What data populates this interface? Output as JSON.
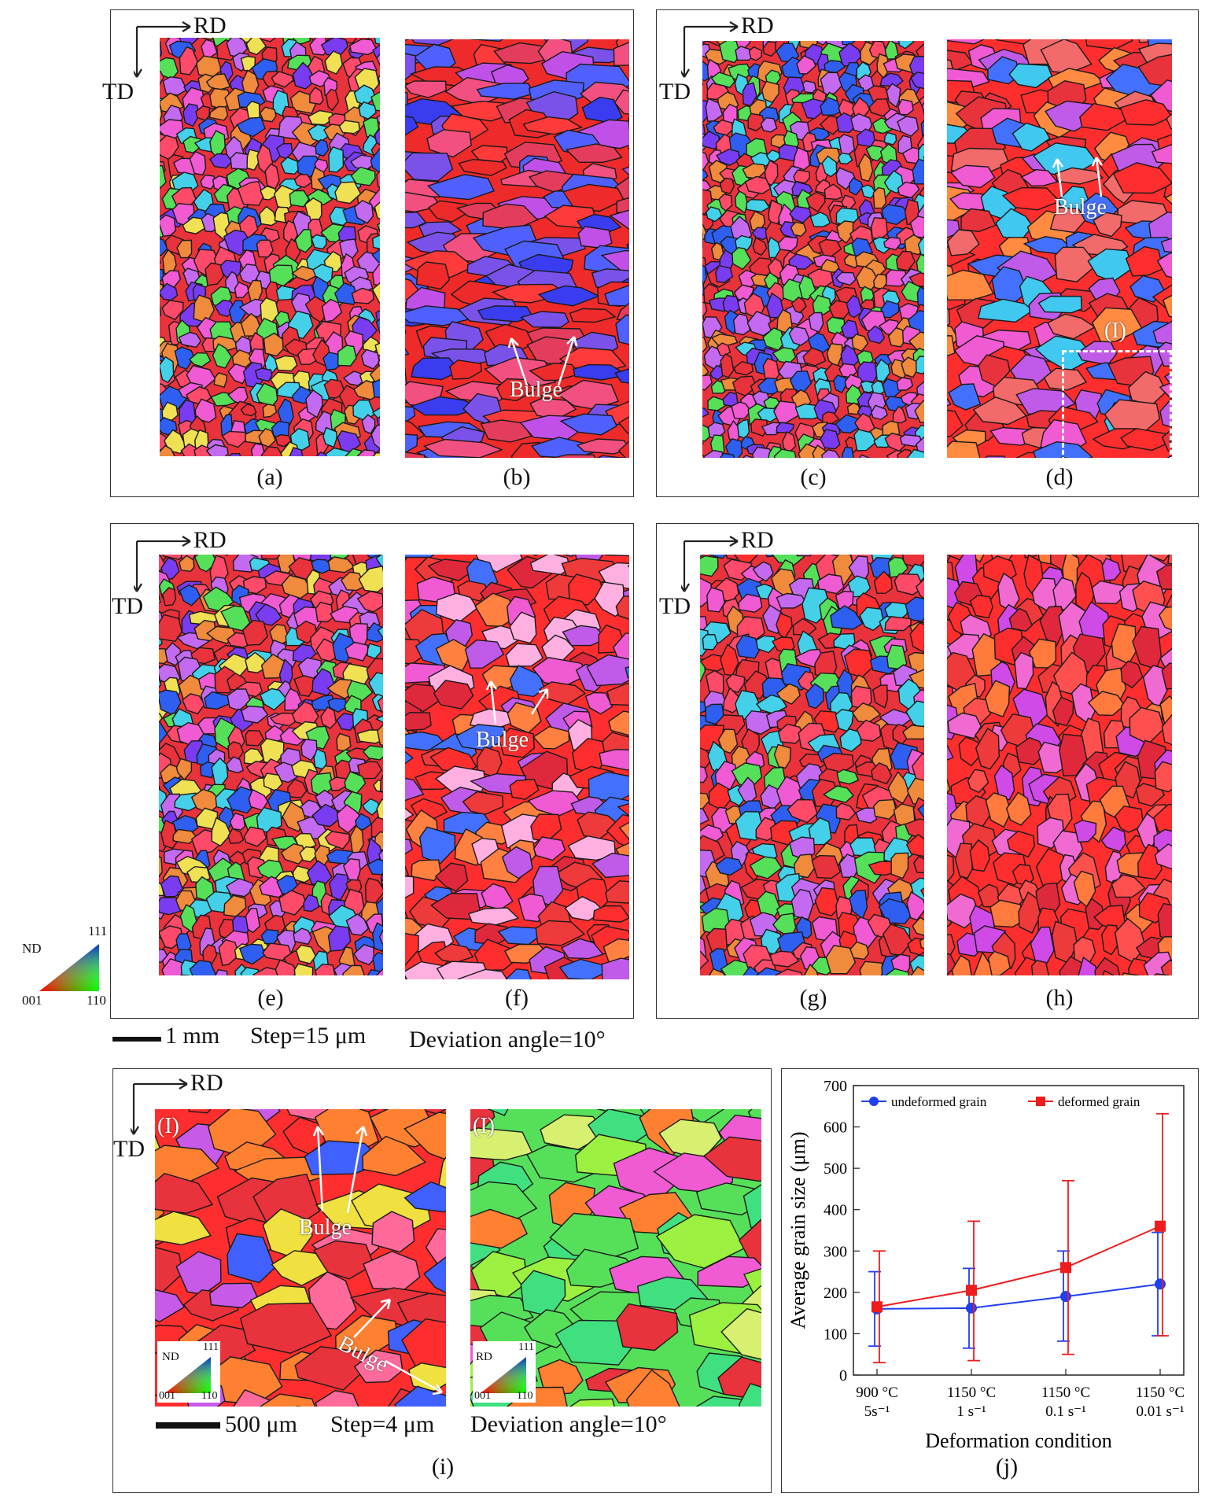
{
  "axes_labels": {
    "rd": "RD",
    "td": "TD"
  },
  "panels": {
    "a": {
      "caption": "(a)",
      "palette": [
        "#e8323c",
        "#7a3cf0",
        "#f05ad2",
        "#2f5ff0",
        "#44d0e8",
        "#56e05a",
        "#f08a3c",
        "#c46af0",
        "#f0e054",
        "#ff4a6a"
      ]
    },
    "b": {
      "caption": "(b)",
      "palette": [
        "#ee2a2a",
        "#3a3cf0",
        "#7a52ea",
        "#c050e8",
        "#f25080",
        "#ff3a3a",
        "#5060ff",
        "#e43c5c"
      ]
    },
    "c": {
      "caption": "(c)",
      "palette": [
        "#e8323c",
        "#f05ad2",
        "#2f5ff0",
        "#7a3cf0",
        "#f08a3c",
        "#44d0e8",
        "#56e05a",
        "#ff4a6a",
        "#c46af0"
      ]
    },
    "d": {
      "caption": "(d)",
      "palette": [
        "#ff2e2e",
        "#e8323c",
        "#4470ff",
        "#c05ae8",
        "#f26a6a",
        "#ff8a40",
        "#40c8f0",
        "#f05ad2"
      ]
    },
    "e": {
      "caption": "(e)",
      "palette": [
        "#e8323c",
        "#56e05a",
        "#2f5ff0",
        "#44d0e8",
        "#f05ad2",
        "#7a3cf0",
        "#f08a3c",
        "#ff4a6a",
        "#c46af0",
        "#f0e054"
      ]
    },
    "f": {
      "caption": "(f)",
      "palette": [
        "#ff2e2e",
        "#ee3a3a",
        "#f05ad2",
        "#c05ae8",
        "#4470ff",
        "#ff8040",
        "#ffb0e0",
        "#e0283c"
      ]
    },
    "g": {
      "caption": "(g)",
      "palette": [
        "#e8323c",
        "#ff2e2e",
        "#f05ad2",
        "#2f5ff0",
        "#f08a3c",
        "#56e05a",
        "#44d0e8",
        "#c46af0",
        "#ff4a6a"
      ]
    },
    "h": {
      "caption": "(h)",
      "palette": [
        "#ff2e2e",
        "#ee3a3a",
        "#ff5050",
        "#f06ad2",
        "#e0283c",
        "#ff7a3c",
        "#d04ae8"
      ]
    },
    "i": {
      "caption": "(i)"
    },
    "j": {
      "caption": "(j)"
    }
  },
  "annotations": {
    "bulge": "Bulge",
    "roi": "(I)"
  },
  "legend_nd": {
    "nd": "ND",
    "v111": "111",
    "v001": "001",
    "v110": "110"
  },
  "legend_rd": {
    "rd": "RD"
  },
  "scale_top": {
    "length": "1 mm",
    "step": "Step=15 μm",
    "deviation": "Deviation angle=10°"
  },
  "scale_bottom": {
    "length": "500 μm",
    "step": "Step=4 μm",
    "deviation": "Deviation angle=10°"
  },
  "zoom_left_palette": [
    "#ff2e2e",
    "#e8323c",
    "#c85ae8",
    "#4060ff",
    "#ff6a9a",
    "#f0e040",
    "#ff8030"
  ],
  "zoom_right_palette": [
    "#56e05a",
    "#9cf040",
    "#e8323c",
    "#ff8030",
    "#d8f070",
    "#40e080",
    "#f05ad2"
  ],
  "chart_data": {
    "type": "line",
    "xlabel": "Deformation condition",
    "ylabel": "Average grain size (μm)",
    "ylim": [
      0,
      700
    ],
    "yticks": [
      0,
      100,
      200,
      300,
      400,
      500,
      600,
      700
    ],
    "categories": [
      {
        "line1": "900 °C",
        "line2": "5s⁻¹"
      },
      {
        "line1": "1150 °C",
        "line2": "1 s⁻¹"
      },
      {
        "line1": "1150 °C",
        "line2": "0.1 s⁻¹"
      },
      {
        "line1": "1150 °C",
        "line2": "0.01 s⁻¹"
      }
    ],
    "series": [
      {
        "name": "undeformed grain",
        "color": "#1f3ff0",
        "marker": "circle",
        "values": [
          160,
          162,
          190,
          220
        ],
        "err_low": [
          70,
          65,
          82,
          95
        ],
        "err_high": [
          250,
          258,
          300,
          345
        ]
      },
      {
        "name": "deformed grain",
        "color": "#ee1c1c",
        "marker": "square",
        "values": [
          165,
          205,
          260,
          360
        ],
        "err_low": [
          30,
          35,
          50,
          95
        ],
        "err_high": [
          300,
          372,
          470,
          632
        ]
      }
    ]
  }
}
